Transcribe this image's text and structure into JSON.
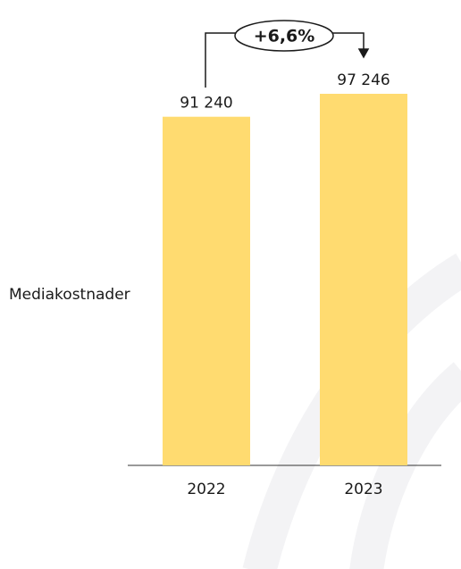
{
  "chart_data": {
    "type": "bar",
    "ylabel": "Mediakostnader",
    "annotation": "+6,6%",
    "categories": [
      "2022",
      "2023"
    ],
    "values": [
      91240,
      97246
    ],
    "value_labels": [
      "91 240",
      "97 246"
    ],
    "color": "#ffdb70"
  }
}
